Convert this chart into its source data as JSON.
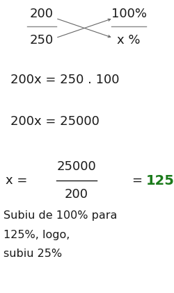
{
  "bg_color": "#ffffff",
  "text_color": "#1a1a1a",
  "green_color": "#1a7a1a",
  "figsize": [
    2.5,
    4.22
  ],
  "dpi": 100,
  "eq1": "200x = 250 . 100",
  "eq2": "200x = 25000",
  "frac3_num": "25000",
  "frac3_den": "200",
  "text_bottom": [
    "Subiu de 100% para",
    "125%, logo,",
    "subiu 25%"
  ],
  "font_size_main": 13,
  "font_size_bottom": 11.5
}
